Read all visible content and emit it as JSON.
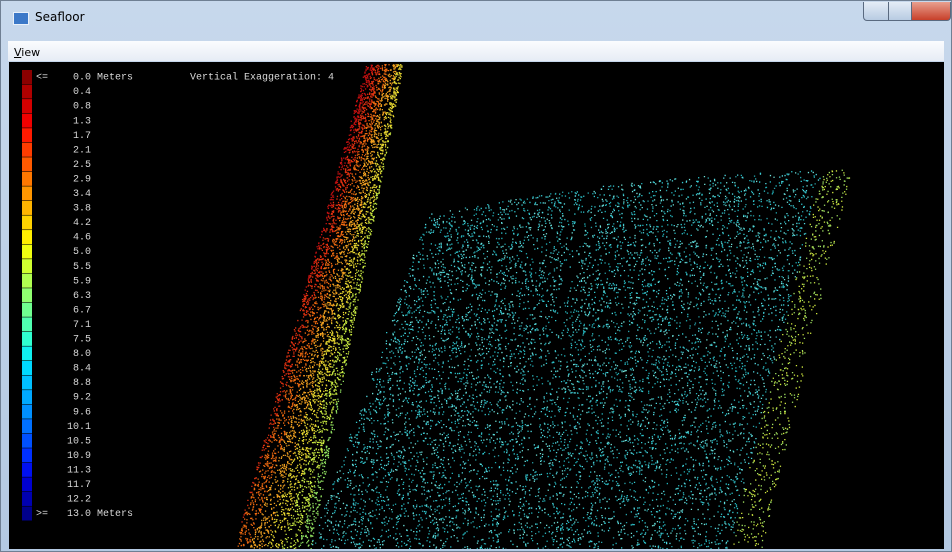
{
  "window": {
    "title": "Seafloor"
  },
  "menu": [
    "View"
  ],
  "viewport": {
    "exaggeration_label": "Vertical Exaggeration: 4"
  },
  "legend": {
    "min_prefix": "<=",
    "max_prefix": ">=",
    "items": [
      {
        "label": "0.0 Meters",
        "color": "#8b0000"
      },
      {
        "label": "0.4",
        "color": "#b00000"
      },
      {
        "label": "0.8",
        "color": "#d40000"
      },
      {
        "label": "1.3",
        "color": "#f00000"
      },
      {
        "label": "1.7",
        "color": "#ff1a00"
      },
      {
        "label": "2.1",
        "color": "#ff3c00"
      },
      {
        "label": "2.5",
        "color": "#ff5a00"
      },
      {
        "label": "2.9",
        "color": "#ff7800"
      },
      {
        "label": "3.4",
        "color": "#ff9600"
      },
      {
        "label": "3.8",
        "color": "#ffb400"
      },
      {
        "label": "4.2",
        "color": "#ffd200"
      },
      {
        "label": "4.6",
        "color": "#ffee00"
      },
      {
        "label": "5.0",
        "color": "#f0ff10"
      },
      {
        "label": "5.5",
        "color": "#d0ff30"
      },
      {
        "label": "5.9",
        "color": "#b0ff50"
      },
      {
        "label": "6.3",
        "color": "#90ff70"
      },
      {
        "label": "6.7",
        "color": "#70ff90"
      },
      {
        "label": "7.1",
        "color": "#50ffb0"
      },
      {
        "label": "7.5",
        "color": "#30ffd0"
      },
      {
        "label": "8.0",
        "color": "#10f0f0"
      },
      {
        "label": "8.4",
        "color": "#00d8ff"
      },
      {
        "label": "8.8",
        "color": "#00c0ff"
      },
      {
        "label": "9.2",
        "color": "#00a8ff"
      },
      {
        "label": "9.6",
        "color": "#0090ff"
      },
      {
        "label": "10.1",
        "color": "#0070ff"
      },
      {
        "label": "10.5",
        "color": "#0050ff"
      },
      {
        "label": "10.9",
        "color": "#0030ff"
      },
      {
        "label": "11.3",
        "color": "#0010f0"
      },
      {
        "label": "11.7",
        "color": "#0000d0"
      },
      {
        "label": "12.2",
        "color": "#0000b0"
      },
      {
        "label": "13.0 Meters",
        "color": "#00008b"
      }
    ]
  }
}
